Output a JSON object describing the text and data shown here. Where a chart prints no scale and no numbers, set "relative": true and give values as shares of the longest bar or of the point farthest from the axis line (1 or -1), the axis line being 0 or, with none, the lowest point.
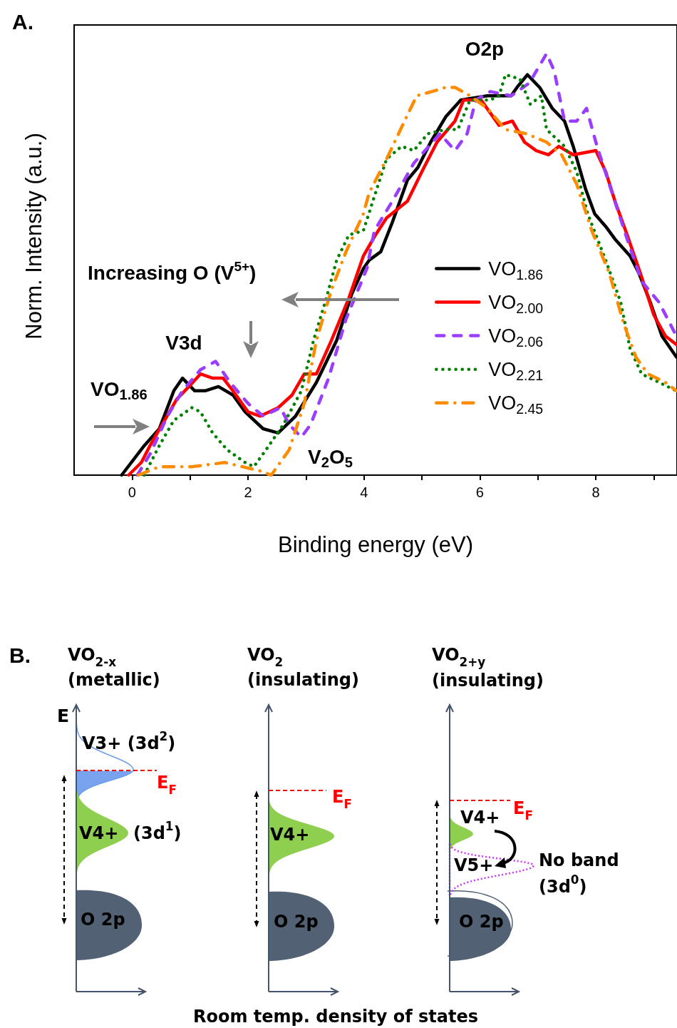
{
  "chart_data": [
    {
      "type": "line",
      "title": "A.",
      "xlabel": "Binding energy (eV)",
      "ylabel": "Norm. Intensity (a.u.)",
      "relative": true,
      "legend": "right",
      "xlim": [
        -1,
        9.4
      ],
      "xticks": [
        0,
        {
          "value": 1,
          "label": null
        },
        2,
        {
          "value": 3,
          "label": null
        },
        4,
        {
          "value": 5,
          "label": null
        },
        6,
        {
          "value": 7,
          "label": null
        },
        8,
        {
          "value": 9,
          "label": null
        }
      ],
      "annotations": [
        "O2p",
        "Increasing O (V$^{5+}$)",
        "V3d",
        "VO$_{1.86}$",
        "V$_{2}$O$_{5}$"
      ],
      "series": [
        {
          "name": "VO$_{1.86}$",
          "color": "#000000",
          "line_style": "solid",
          "x": [
            -0.18,
            0.21,
            0.47,
            0.72,
            0.87,
            1.08,
            1.26,
            1.49,
            1.74,
            1.95,
            2.26,
            2.52,
            2.82,
            3.18,
            3.53,
            3.79,
            3.99,
            4.09,
            4.29,
            4.49,
            4.75,
            4.93,
            5.15,
            5.41,
            5.67,
            6.13,
            6.54,
            6.64,
            6.82,
            7.03,
            7.25,
            7.46,
            7.61,
            7.82,
            7.98,
            8.17,
            8.33,
            8.59,
            8.74,
            8.94,
            9.14,
            9.39
          ],
          "values": [
            0,
            0.07,
            0.11,
            0.2,
            0.23,
            0.2,
            0.2,
            0.21,
            0.19,
            0.15,
            0.11,
            0.1,
            0.14,
            0.22,
            0.32,
            0.43,
            0.49,
            0.51,
            0.53,
            0.6,
            0.7,
            0.73,
            0.79,
            0.85,
            0.89,
            0.9,
            0.9,
            0.92,
            0.95,
            0.92,
            0.87,
            0.84,
            0.78,
            0.68,
            0.62,
            0.59,
            0.56,
            0.52,
            0.48,
            0.41,
            0.33,
            0.28
          ]
        },
        {
          "name": "VO$_{2.00}$",
          "color": "#ff0000",
          "line_style": "solid",
          "x": [
            -0.06,
            0.16,
            0.31,
            0.77,
            0.98,
            1.18,
            1.39,
            1.57,
            1.74,
            2.0,
            2.21,
            2.52,
            2.76,
            2.97,
            3.18,
            3.44,
            3.74,
            3.99,
            4.2,
            4.39,
            4.75,
            5.0,
            5.26,
            5.57,
            5.72,
            6.02,
            6.33,
            6.56,
            6.77,
            6.97,
            7.18,
            7.36,
            7.61,
            8.0,
            8.17,
            8.33,
            8.54,
            8.79,
            9.0,
            9.2,
            9.39
          ],
          "values": [
            0,
            0.03,
            0.07,
            0.18,
            0.21,
            0.24,
            0.23,
            0.23,
            0.2,
            0.15,
            0.14,
            0.16,
            0.19,
            0.24,
            0.24,
            0.32,
            0.42,
            0.52,
            0.57,
            0.61,
            0.65,
            0.72,
            0.79,
            0.84,
            0.89,
            0.89,
            0.83,
            0.84,
            0.79,
            0.77,
            0.76,
            0.78,
            0.76,
            0.77,
            0.72,
            0.65,
            0.57,
            0.47,
            0.38,
            0.33,
            0.31
          ]
        },
        {
          "name": "VO$_{2.06}$",
          "color": "#9b3dff",
          "line_style": "dashed",
          "x": [
            0.09,
            0.31,
            0.61,
            0.87,
            1.18,
            1.44,
            1.69,
            2.0,
            2.26,
            2.56,
            2.71,
            2.92,
            3.08,
            3.39,
            3.69,
            4.05,
            4.18,
            4.49,
            4.86,
            5.31,
            5.57,
            5.78,
            5.93,
            6.18,
            6.54,
            6.85,
            7.15,
            7.28,
            7.46,
            7.67,
            7.84,
            8.02,
            8.28,
            8.54,
            8.79,
            9.09,
            9.39
          ],
          "values": [
            0,
            0.05,
            0.14,
            0.2,
            0.25,
            0.27,
            0.22,
            0.17,
            0.14,
            0.16,
            0.12,
            0.09,
            0.12,
            0.23,
            0.37,
            0.49,
            0.58,
            0.65,
            0.74,
            0.81,
            0.77,
            0.81,
            0.89,
            0.91,
            0.9,
            0.93,
            1,
            0.96,
            0.84,
            0.84,
            0.87,
            0.78,
            0.67,
            0.56,
            0.46,
            0.41,
            0.33
          ]
        },
        {
          "name": "VO$_{2.21}$",
          "color": "#008000",
          "line_style": "dotted",
          "x": [
            0.21,
            0.47,
            0.72,
            1.03,
            1.18,
            1.39,
            1.64,
            1.95,
            2.1,
            2.31,
            2.61,
            2.92,
            3.13,
            3.33,
            3.53,
            3.74,
            3.99,
            4.2,
            4.39,
            4.65,
            4.86,
            5.1,
            5.41,
            5.62,
            5.83,
            6.18,
            6.33,
            6.44,
            6.69,
            6.87,
            7.06,
            7.15,
            7.46,
            7.67,
            7.86,
            8.17,
            8.43,
            8.59,
            8.79,
            9.09,
            9.39
          ],
          "values": [
            0,
            0.07,
            0.13,
            0.16,
            0.15,
            0.1,
            0.06,
            0.03,
            0.02,
            0.06,
            0.12,
            0.2,
            0.32,
            0.41,
            0.51,
            0.57,
            0.58,
            0.67,
            0.75,
            0.78,
            0.77,
            0.81,
            0.82,
            0.82,
            0.89,
            0.89,
            0.9,
            0.95,
            0.94,
            0.88,
            0.9,
            0.82,
            0.78,
            0.72,
            0.62,
            0.51,
            0.41,
            0.3,
            0.24,
            0.22,
            0.2
          ]
        },
        {
          "name": "VO$_{2.45}$",
          "color": "#ff8c00",
          "line_style": "dashdot",
          "x": [
            0.11,
            0.47,
            1.03,
            1.6,
            1.9,
            2.21,
            2.4,
            2.71,
            2.97,
            3.18,
            3.44,
            3.69,
            3.99,
            4.09,
            4.39,
            4.7,
            4.91,
            5.17,
            5.41,
            5.57,
            5.83,
            6.13,
            6.44,
            6.8,
            7.15,
            7.41,
            7.67,
            7.93,
            8.23,
            8.48,
            8.69,
            8.9,
            9.2,
            9.39
          ],
          "values": [
            0,
            0.02,
            0.02,
            0.03,
            0.02,
            0.01,
            0,
            0.06,
            0.17,
            0.32,
            0.44,
            0.53,
            0.62,
            0.67,
            0.75,
            0.84,
            0.9,
            0.91,
            0.92,
            0.92,
            0.9,
            0.87,
            0.82,
            0.81,
            0.79,
            0.76,
            0.69,
            0.58,
            0.48,
            0.36,
            0.28,
            0.24,
            0.22,
            0.2
          ]
        }
      ]
    },
    {
      "type": "other",
      "title": "B.",
      "xlabel": "Room temp. density of states",
      "ylabel": "E",
      "annotations": [
        "VO$_{2-x}$",
        "(metallic)",
        "VO$_{2}$",
        "(insulating)",
        "VO$_{2+y}$",
        "(insulating)",
        "V3+ (3d$^{2}$)",
        "E$_{F}$",
        "V4+",
        "(3d$^{1}$)",
        "O 2p",
        "E$_{F}$",
        "V4+",
        "O 2p",
        "E$_{F}$",
        "V4+",
        "V5+",
        "No band",
        "(3d$^{0}$)",
        "O 2p"
      ]
    }
  ]
}
